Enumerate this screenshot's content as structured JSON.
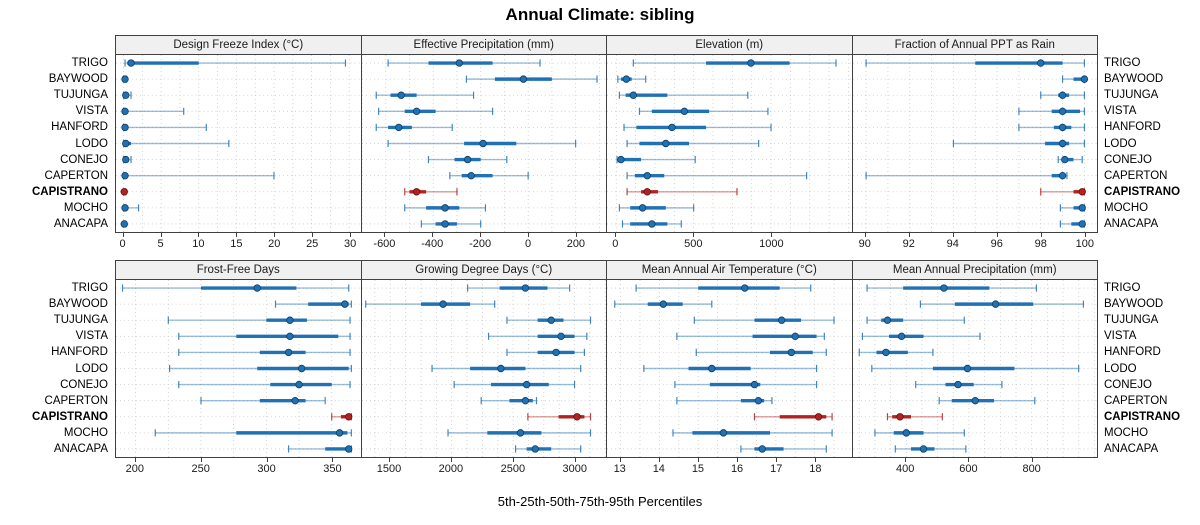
{
  "title": "Annual Climate: sibling",
  "caption": "5th-25th-50th-75th-95th Percentiles",
  "stations": [
    "TRIGO",
    "BAYWOOD",
    "TUJUNGA",
    "VISTA",
    "HANFORD",
    "LODO",
    "CONEJO",
    "CAPERTON",
    "CAPISTRANO",
    "MOCHO",
    "ANACAPA"
  ],
  "highlight_station": "CAPISTRANO",
  "colors": {
    "blue": "#2171b5",
    "blue_dark": "#0b3d61",
    "red": "#b22222",
    "red_dark": "#5e1010",
    "grid": "#c9c9c9",
    "border": "#404040",
    "strip_bg": "#f0f0f0"
  },
  "chart_data": [
    {
      "type": "interval",
      "title": "Design Freeze Index (°C)",
      "xlim": [
        -1,
        31.5
      ],
      "xticks": [
        0,
        5,
        10,
        15,
        20,
        25,
        30
      ],
      "grid_step": 2.5,
      "percentiles": [
        [
          0.2,
          0.5,
          1.0,
          10.0,
          29.5
        ],
        [
          0.0,
          0.0,
          0.2,
          0.3,
          0.4
        ],
        [
          0.0,
          0.1,
          0.3,
          0.5,
          1.0
        ],
        [
          0.0,
          0.0,
          0.2,
          0.4,
          8.0
        ],
        [
          0.0,
          0.0,
          0.2,
          0.4,
          11.0
        ],
        [
          0.0,
          0.1,
          0.3,
          1.0,
          14.0
        ],
        [
          0.0,
          0.1,
          0.3,
          0.5,
          1.0
        ],
        [
          0.0,
          0.0,
          0.2,
          0.5,
          20.0
        ],
        [
          0.0,
          0.0,
          0.1,
          0.2,
          0.3
        ],
        [
          0.0,
          0.0,
          0.2,
          0.4,
          2.0
        ],
        [
          0.0,
          0.0,
          0.1,
          0.2,
          0.3
        ]
      ]
    },
    {
      "type": "interval",
      "title": "Effective Precipitation (mm)",
      "xlim": [
        -700,
        330
      ],
      "xticks": [
        -600,
        -400,
        -200,
        0,
        200
      ],
      "grid_step": 100,
      "percentiles": [
        [
          -590,
          -420,
          -290,
          -150,
          50
        ],
        [
          -260,
          -140,
          -20,
          100,
          290
        ],
        [
          -640,
          -580,
          -535,
          -470,
          -230
        ],
        [
          -630,
          -520,
          -470,
          -390,
          -150
        ],
        [
          -640,
          -590,
          -545,
          -490,
          -320
        ],
        [
          -590,
          -270,
          -190,
          -50,
          200
        ],
        [
          -420,
          -310,
          -255,
          -200,
          -90
        ],
        [
          -330,
          -280,
          -240,
          -150,
          0
        ],
        [
          -520,
          -500,
          -470,
          -430,
          -300
        ],
        [
          -520,
          -430,
          -350,
          -290,
          -180
        ],
        [
          -450,
          -390,
          -350,
          -300,
          -200
        ]
      ]
    },
    {
      "type": "interval",
      "title": "Elevation (m)",
      "xlim": [
        -60,
        1520
      ],
      "xticks": [
        0,
        500,
        1000
      ],
      "grid_step": 125,
      "percentiles": [
        [
          110,
          580,
          870,
          1120,
          1420
        ],
        [
          10,
          30,
          65,
          100,
          190
        ],
        [
          20,
          60,
          110,
          330,
          850
        ],
        [
          150,
          230,
          440,
          600,
          980
        ],
        [
          50,
          130,
          360,
          580,
          1000
        ],
        [
          70,
          150,
          320,
          470,
          920
        ],
        [
          5,
          15,
          30,
          160,
          510
        ],
        [
          70,
          120,
          200,
          310,
          1230
        ],
        [
          70,
          160,
          200,
          270,
          780
        ],
        [
          20,
          90,
          170,
          320,
          500
        ],
        [
          40,
          90,
          230,
          330,
          420
        ]
      ]
    },
    {
      "type": "interval",
      "title": "Fraction of Annual PPT as Rain",
      "xlim": [
        89.4,
        100.6
      ],
      "xticks": [
        90,
        92,
        94,
        96,
        98,
        100
      ],
      "grid_step": 1,
      "percentiles": [
        [
          90.0,
          95.0,
          98.0,
          99.0,
          100.0
        ],
        [
          99.0,
          99.5,
          100.0,
          100.0,
          100.0
        ],
        [
          98.0,
          98.8,
          99.0,
          99.3,
          100.0
        ],
        [
          97.0,
          98.5,
          99.0,
          99.8,
          100.0
        ],
        [
          97.0,
          98.6,
          99.0,
          99.4,
          100.0
        ],
        [
          94.0,
          98.2,
          99.0,
          99.3,
          100.0
        ],
        [
          98.8,
          99.0,
          99.1,
          99.5,
          99.9
        ],
        [
          90.0,
          98.5,
          99.0,
          99.1,
          99.2
        ],
        [
          98.0,
          99.5,
          99.9,
          100.0,
          100.0
        ],
        [
          98.9,
          99.5,
          99.9,
          100.0,
          100.0
        ],
        [
          98.9,
          99.4,
          99.9,
          100.0,
          100.0
        ]
      ]
    },
    {
      "type": "interval",
      "title": "Frost-Free Days",
      "xlim": [
        185,
        372
      ],
      "xticks": [
        200,
        250,
        300,
        350
      ],
      "grid_step": 25,
      "percentiles": [
        [
          190,
          250,
          293,
          323,
          363
        ],
        [
          307,
          332,
          360,
          363,
          365
        ],
        [
          225,
          300,
          318,
          331,
          364
        ],
        [
          233,
          277,
          318,
          355,
          364
        ],
        [
          233,
          295,
          317,
          330,
          364
        ],
        [
          226,
          293,
          327,
          363,
          365
        ],
        [
          233,
          303,
          325,
          350,
          364
        ],
        [
          250,
          295,
          322,
          330,
          345
        ],
        [
          350,
          357,
          363,
          364,
          365
        ],
        [
          215,
          277,
          356,
          362,
          365
        ],
        [
          317,
          345,
          363,
          364,
          365
        ]
      ]
    },
    {
      "type": "interval",
      "title": "Growing Degree Days (°C)",
      "xlim": [
        1270,
        3260
      ],
      "xticks": [
        1500,
        2000,
        2500,
        3000
      ],
      "grid_step": 125,
      "percentiles": [
        [
          2130,
          2390,
          2600,
          2780,
          2960
        ],
        [
          1300,
          1750,
          1930,
          2150,
          2350
        ],
        [
          2450,
          2700,
          2810,
          2910,
          3130
        ],
        [
          2300,
          2700,
          2890,
          3000,
          3100
        ],
        [
          2450,
          2700,
          2850,
          3000,
          3080
        ],
        [
          1840,
          2150,
          2400,
          2600,
          3050
        ],
        [
          2020,
          2320,
          2610,
          2790,
          3000
        ],
        [
          2240,
          2470,
          2600,
          2660,
          2690
        ],
        [
          2620,
          2870,
          3020,
          3080,
          3130
        ],
        [
          1970,
          2290,
          2560,
          2730,
          3130
        ],
        [
          2520,
          2610,
          2680,
          2810,
          3050
        ]
      ]
    },
    {
      "type": "interval",
      "title": "Mean Annual Air Temperature (°C)",
      "xlim": [
        12.65,
        18.95
      ],
      "xticks": [
        13,
        14,
        15,
        16,
        17,
        18
      ],
      "grid_step": 0.5,
      "percentiles": [
        [
          13.4,
          15.0,
          16.2,
          17.1,
          17.9
        ],
        [
          12.85,
          13.7,
          14.1,
          14.6,
          15.35
        ],
        [
          14.9,
          16.45,
          17.15,
          17.65,
          18.5
        ],
        [
          14.45,
          16.4,
          17.5,
          18.05,
          18.25
        ],
        [
          14.95,
          16.85,
          17.4,
          17.95,
          18.3
        ],
        [
          13.6,
          14.75,
          15.35,
          16.35,
          18.05
        ],
        [
          14.4,
          15.3,
          16.45,
          16.6,
          18.05
        ],
        [
          14.45,
          16.1,
          16.55,
          16.7,
          16.9
        ],
        [
          16.45,
          17.1,
          18.1,
          18.3,
          18.45
        ],
        [
          14.35,
          14.85,
          15.65,
          16.85,
          18.45
        ],
        [
          16.1,
          16.45,
          16.65,
          17.2,
          18.3
        ]
      ]
    },
    {
      "type": "interval",
      "title": "Mean Annual Precipitation (mm)",
      "xlim": [
        230,
        1010
      ],
      "xticks": [
        400,
        600,
        800
      ],
      "grid_step": 50,
      "percentiles": [
        [
          275,
          390,
          520,
          665,
          815
        ],
        [
          445,
          555,
          685,
          805,
          965
        ],
        [
          275,
          320,
          340,
          390,
          585
        ],
        [
          260,
          345,
          385,
          455,
          635
        ],
        [
          250,
          305,
          335,
          405,
          485
        ],
        [
          290,
          485,
          595,
          745,
          950
        ],
        [
          430,
          525,
          565,
          615,
          705
        ],
        [
          505,
          545,
          620,
          680,
          810
        ],
        [
          340,
          355,
          380,
          415,
          515
        ],
        [
          300,
          360,
          400,
          455,
          585
        ],
        [
          365,
          415,
          455,
          490,
          590
        ]
      ]
    }
  ]
}
